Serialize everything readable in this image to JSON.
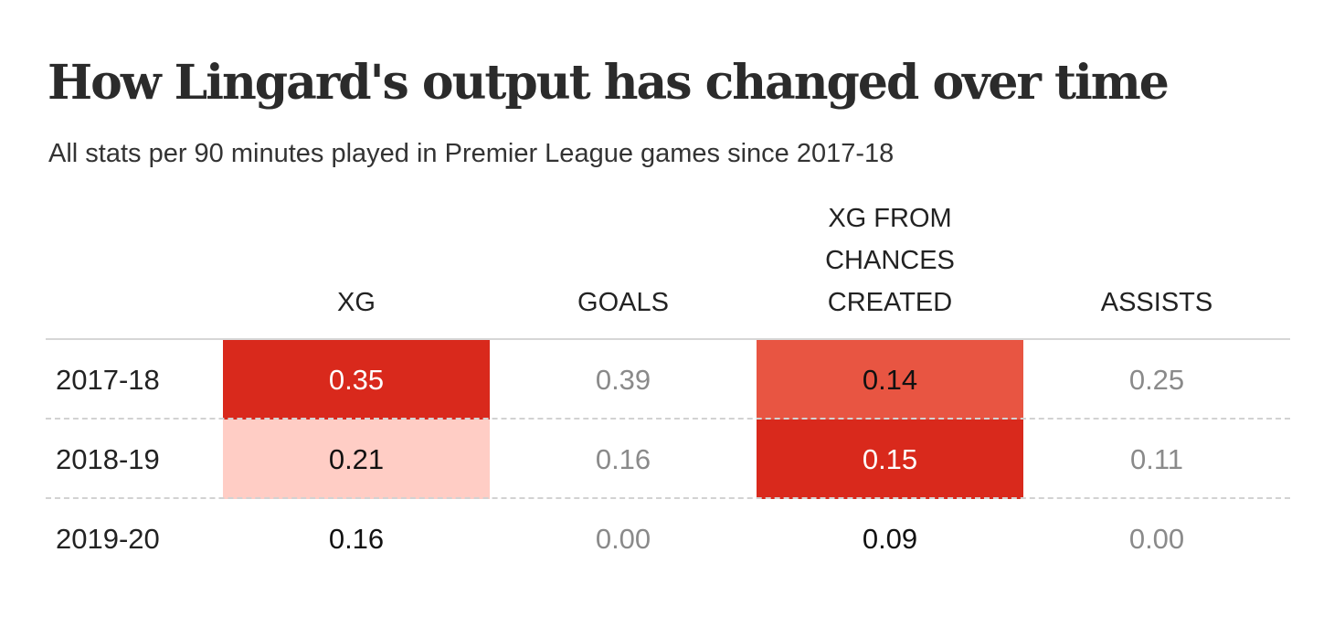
{
  "title": "How Lingard's output has changed over time",
  "subtitle": "All stats per 90 minutes played in Premier League games since 2017-18",
  "colors": {
    "high": "#d9291c",
    "mid": "#e85542",
    "low": "#ffcdc5",
    "none": "#ffffff",
    "text_on_high": "#ffffff",
    "text_default": "#111111",
    "text_muted": "#8a8a8a"
  },
  "chart_data": {
    "type": "table",
    "title": "How Lingard's output has changed over time",
    "subtitle": "All stats per 90 minutes played in Premier League games since 2017-18",
    "columns": [
      "XG",
      "GOALS",
      "XG FROM\nCHANCES\nCREATED",
      "ASSISTS"
    ],
    "rows": [
      {
        "label": "2017-18",
        "cells": [
          {
            "value": "0.35",
            "shade": "high",
            "text": "text_on_high"
          },
          {
            "value": "0.39",
            "shade": "none",
            "text": "text_muted"
          },
          {
            "value": "0.14",
            "shade": "mid",
            "text": "text_default"
          },
          {
            "value": "0.25",
            "shade": "none",
            "text": "text_muted"
          }
        ]
      },
      {
        "label": "2018-19",
        "cells": [
          {
            "value": "0.21",
            "shade": "low",
            "text": "text_default"
          },
          {
            "value": "0.16",
            "shade": "none",
            "text": "text_muted"
          },
          {
            "value": "0.15",
            "shade": "high",
            "text": "text_on_high"
          },
          {
            "value": "0.11",
            "shade": "none",
            "text": "text_muted"
          }
        ]
      },
      {
        "label": "2019-20",
        "cells": [
          {
            "value": "0.16",
            "shade": "none",
            "text": "text_default"
          },
          {
            "value": "0.00",
            "shade": "none",
            "text": "text_muted"
          },
          {
            "value": "0.09",
            "shade": "none",
            "text": "text_default"
          },
          {
            "value": "0.00",
            "shade": "none",
            "text": "text_muted"
          }
        ]
      }
    ]
  }
}
